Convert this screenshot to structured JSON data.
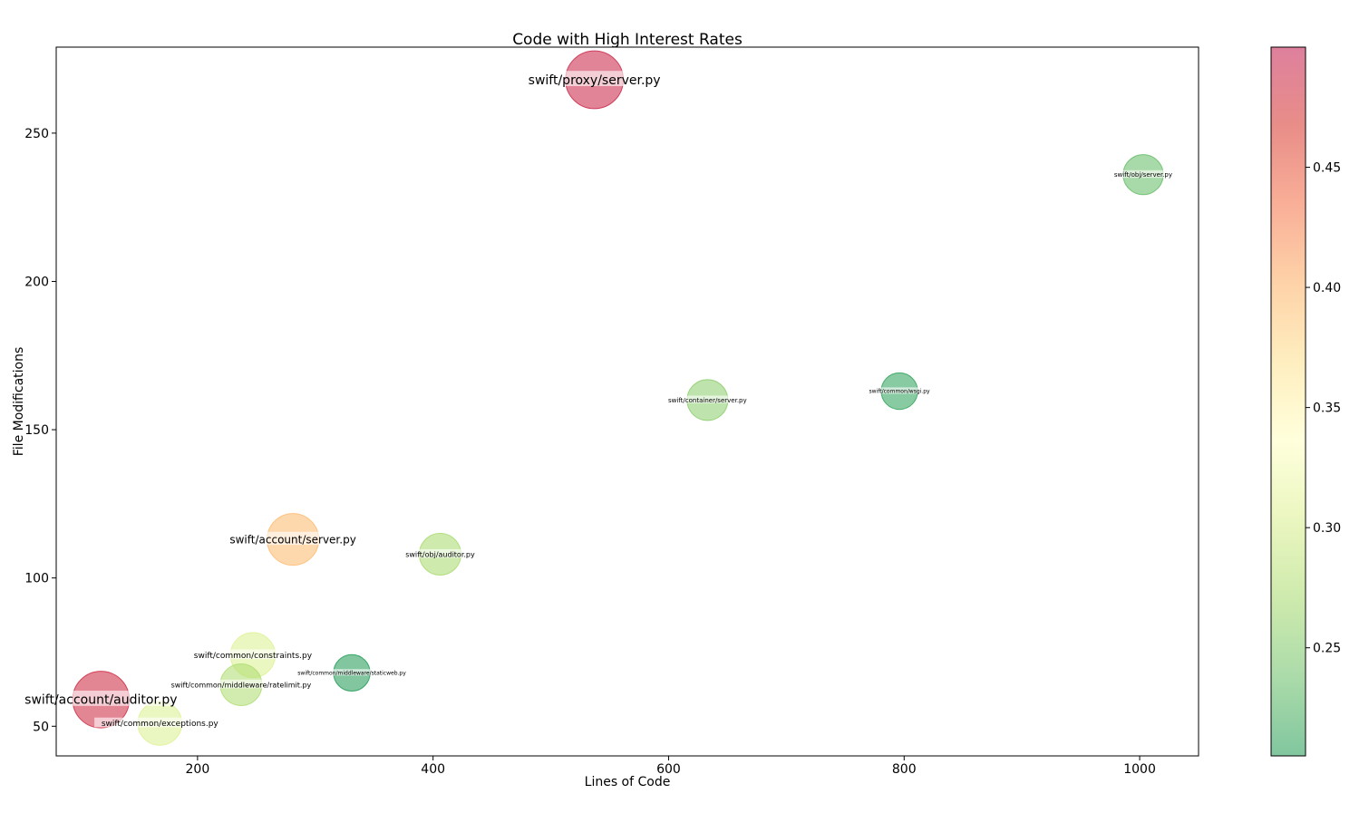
{
  "chart_data": {
    "type": "scatter",
    "title": "Code with High Interest Rates",
    "xlabel": "Lines of Code",
    "ylabel": "File Modifications",
    "xlim": [
      80,
      1050
    ],
    "ylim": [
      40,
      279
    ],
    "xticks": [
      200,
      400,
      600,
      800,
      1000
    ],
    "yticks": [
      50,
      100,
      150,
      200,
      250
    ],
    "grid": false,
    "colorbar": {
      "range": [
        0.205,
        0.5
      ],
      "ticks": [
        0.25,
        0.3,
        0.35,
        0.4,
        0.45
      ],
      "tick_labels": [
        "0.25",
        "0.30",
        "0.35",
        "0.40",
        "0.45"
      ],
      "colormap": [
        "#1a9850",
        "#66bd63",
        "#a6d96a",
        "#d9ef8b",
        "#ffffbf",
        "#fee08b",
        "#fdae61",
        "#f46d43",
        "#d73027",
        "#c2184d"
      ]
    },
    "points": [
      {
        "label": "swift/proxy/server.py",
        "x": 537,
        "y": 268,
        "value": 0.49,
        "size": 2500,
        "font": 14
      },
      {
        "label": "swift/obj/server.py",
        "x": 1003,
        "y": 236,
        "value": 0.235,
        "size": 1200,
        "font": 7
      },
      {
        "label": "swift/container/server.py",
        "x": 633,
        "y": 160,
        "value": 0.255,
        "size": 1250,
        "font": 7
      },
      {
        "label": "swift/common/wsgi.py",
        "x": 796,
        "y": 163,
        "value": 0.21,
        "size": 1000,
        "font": 6
      },
      {
        "label": "swift/account/server.py",
        "x": 281,
        "y": 113,
        "value": 0.395,
        "size": 2000,
        "font": 12
      },
      {
        "label": "swift/obj/auditor.py",
        "x": 406,
        "y": 108,
        "value": 0.27,
        "size": 1300,
        "font": 8
      },
      {
        "label": "swift/common/constraints.py",
        "x": 247,
        "y": 74,
        "value": 0.305,
        "size": 1500,
        "font": 9
      },
      {
        "label": "swift/common/middleware/ratelimit.py",
        "x": 237,
        "y": 64,
        "value": 0.275,
        "size": 1300,
        "font": 8
      },
      {
        "label": "swift/common/middleware/staticweb.py",
        "x": 331,
        "y": 68,
        "value": 0.205,
        "size": 1000,
        "font": 6
      },
      {
        "label": "swift/account/auditor.py",
        "x": 118,
        "y": 59,
        "value": 0.485,
        "size": 2400,
        "font": 14
      },
      {
        "label": "swift/common/exceptions.py",
        "x": 168,
        "y": 51,
        "value": 0.305,
        "size": 1450,
        "font": 9
      }
    ]
  }
}
